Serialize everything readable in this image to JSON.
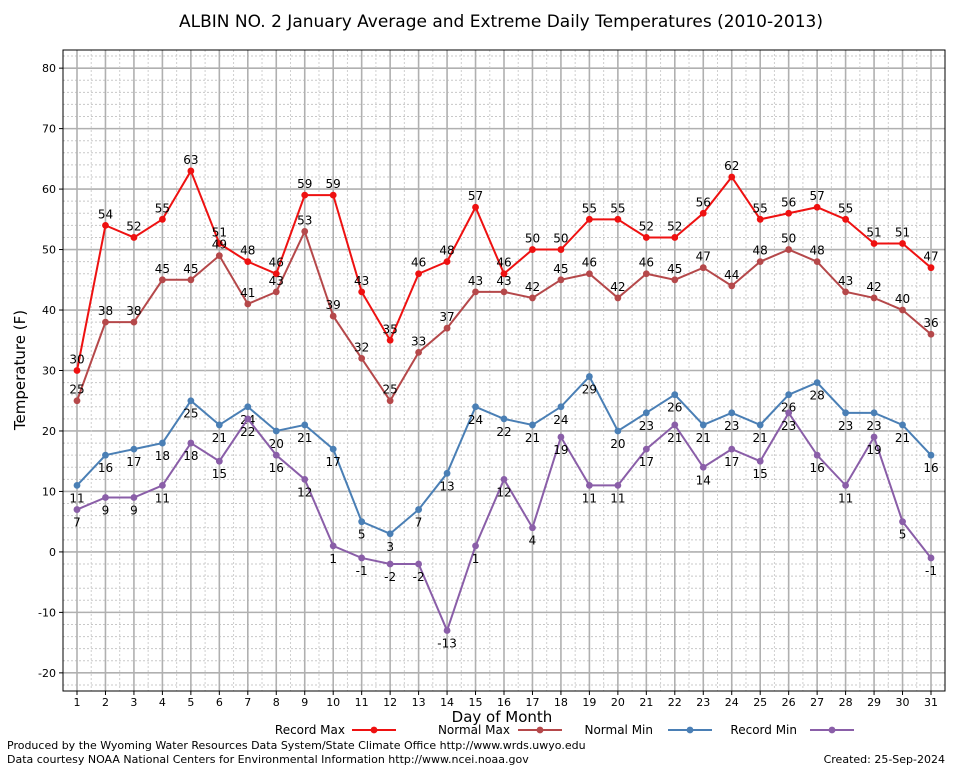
{
  "chart_data": {
    "type": "line",
    "title": "ALBIN NO. 2 January Average and Extreme Daily Temperatures (2010-2013)",
    "xlabel": "Day of Month",
    "ylabel": "Temperature (F)",
    "ylim": [
      -23,
      83
    ],
    "yticks": [
      -20,
      -10,
      0,
      10,
      20,
      30,
      40,
      50,
      60,
      70,
      80
    ],
    "x": [
      1,
      2,
      3,
      4,
      5,
      6,
      7,
      8,
      9,
      10,
      11,
      12,
      13,
      14,
      15,
      16,
      17,
      18,
      19,
      20,
      21,
      22,
      23,
      24,
      25,
      26,
      27,
      28,
      29,
      30,
      31
    ],
    "grid": true,
    "legend_position": "bottom",
    "series": [
      {
        "name": "Record Max",
        "color": "#ee1111",
        "label_position": "above",
        "values": [
          30,
          54,
          52,
          55,
          63,
          51,
          48,
          46,
          59,
          59,
          43,
          35,
          46,
          48,
          57,
          46,
          50,
          50,
          55,
          55,
          52,
          52,
          56,
          62,
          55,
          56,
          57,
          55,
          51,
          51,
          47
        ]
      },
      {
        "name": "Normal Max",
        "color": "#b5484a",
        "label_position": "above",
        "values": [
          25,
          38,
          38,
          45,
          45,
          49,
          41,
          43,
          53,
          39,
          32,
          25,
          33,
          37,
          43,
          43,
          42,
          45,
          46,
          42,
          46,
          45,
          47,
          44,
          48,
          50,
          48,
          43,
          42,
          40,
          36
        ]
      },
      {
        "name": "Normal Min",
        "color": "#4a7fb5",
        "label_position": "below",
        "values": [
          11,
          16,
          17,
          18,
          25,
          21,
          24,
          20,
          21,
          17,
          5,
          3,
          7,
          13,
          24,
          22,
          21,
          24,
          29,
          20,
          23,
          26,
          21,
          23,
          21,
          26,
          28,
          23,
          23,
          21,
          16
        ]
      },
      {
        "name": "Record Min",
        "color": "#8a5ea8",
        "label_position": "below",
        "values": [
          7,
          9,
          9,
          11,
          18,
          15,
          22,
          16,
          12,
          1,
          -1,
          -2,
          -2,
          -13,
          1,
          12,
          4,
          19,
          11,
          11,
          17,
          21,
          14,
          17,
          15,
          23,
          16,
          11,
          19,
          5,
          -1
        ]
      }
    ]
  },
  "footer": {
    "produced_by": "Produced by the Wyoming Water Resources Data System/State Climate Office http://www.wrds.uwyo.edu",
    "courtesy": "Data courtesy NOAA National Centers for Environmental Information http://www.ncei.noaa.gov",
    "created": "Created:  25-Sep-2024"
  }
}
